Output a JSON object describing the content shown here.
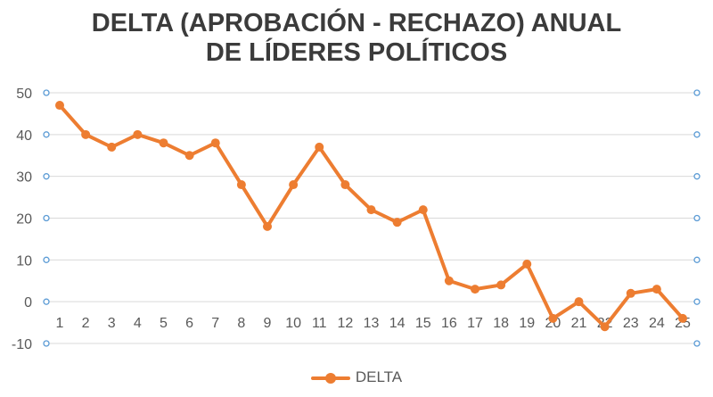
{
  "chart_data": {
    "type": "line",
    "title_lines": [
      "DELTA (APROBACIÓN - RECHAZO) ANUAL",
      "DE LÍDERES POLÍTICOS"
    ],
    "categories": [
      "1",
      "2",
      "3",
      "4",
      "5",
      "6",
      "7",
      "8",
      "9",
      "10",
      "11",
      "12",
      "13",
      "14",
      "15",
      "16",
      "17",
      "18",
      "19",
      "20",
      "21",
      "22",
      "23",
      "24",
      "25"
    ],
    "series": [
      {
        "name": "DELTA",
        "values": [
          47,
          40,
          37,
          40,
          38,
          35,
          38,
          28,
          18,
          28,
          37,
          28,
          22,
          19,
          22,
          5,
          3,
          4,
          9,
          -4,
          0,
          -6,
          2,
          3,
          -4
        ]
      }
    ],
    "xlabel": "",
    "ylabel": "",
    "ylim": [
      -10,
      50
    ],
    "yticks": [
      50,
      40,
      30,
      20,
      10,
      0,
      -10
    ],
    "grid": true,
    "legend_position": "bottom",
    "colors": {
      "series": "#ed7d31",
      "grid": "#d9d9d9",
      "secondary_axis_marker": "#5b9bd5",
      "text": "#595959"
    }
  }
}
